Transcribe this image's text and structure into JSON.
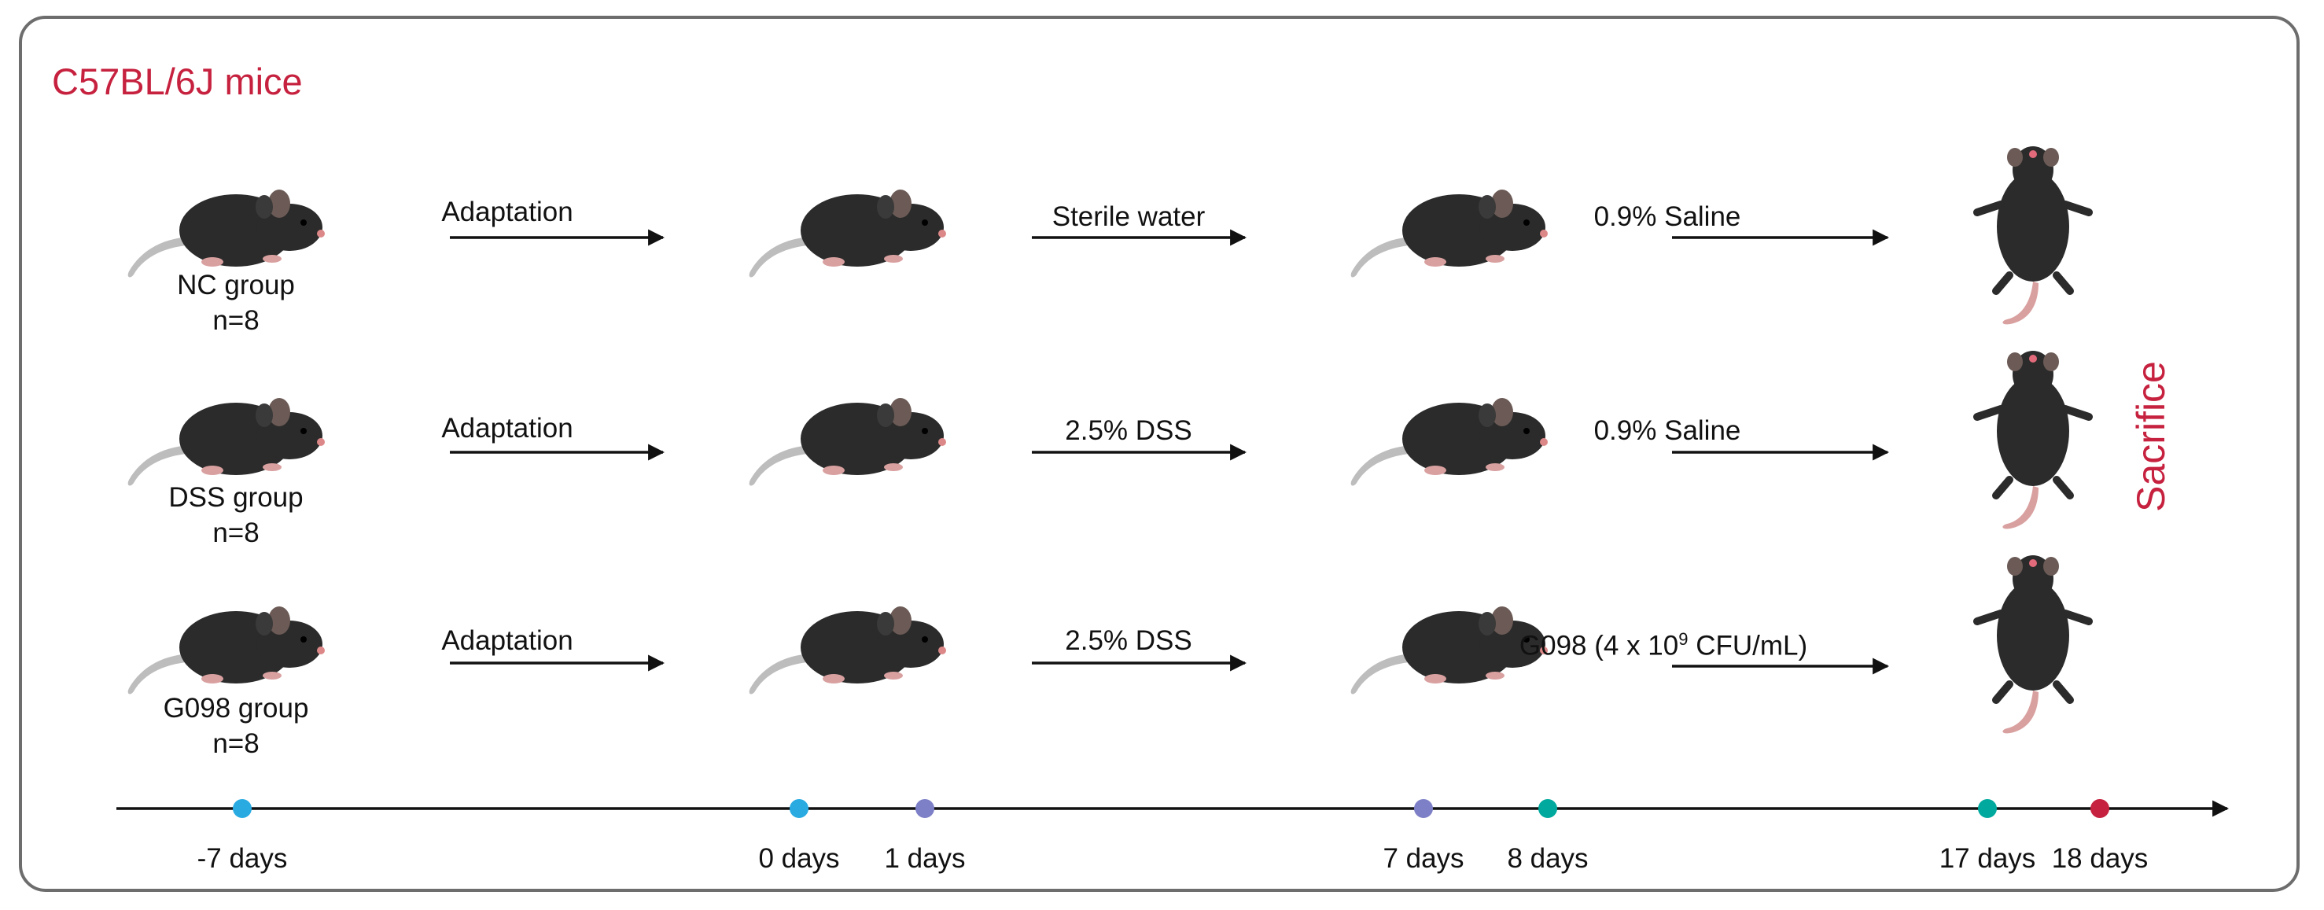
{
  "strain": "C57BL/6J mice",
  "groups": [
    {
      "name": "NC group",
      "n": "n=8"
    },
    {
      "name": "DSS group",
      "n": "n=8"
    },
    {
      "name": "G098 group",
      "n": "n=8"
    }
  ],
  "steps": {
    "adaptation": "Adaptation",
    "sterile_water": "Sterile water",
    "dss_1": "2.5% DSS",
    "dss_2": "2.5% DSS",
    "saline_1": "0.9% Saline",
    "saline_2": "0.9% Saline",
    "g098_prefix": "G098 (4 x 10",
    "g098_exp": "9",
    "g098_suffix": " CFU/mL)"
  },
  "sacrifice": "Sacrifice",
  "timeline": {
    "ticks": [
      {
        "day": -7,
        "label": "-7 days",
        "color": "#29abe2"
      },
      {
        "day": 0,
        "label": "0 days",
        "color": "#29abe2"
      },
      {
        "day": 1,
        "label": "1 days",
        "color": "#7d7fc7"
      },
      {
        "day": 7,
        "label": "7 days",
        "color": "#7d7fc7"
      },
      {
        "day": 8,
        "label": "8 days",
        "color": "#00a99d"
      },
      {
        "day": 17,
        "label": "17 days",
        "color": "#00a99d"
      },
      {
        "day": 18,
        "label": "18 days",
        "color": "#c6213e"
      }
    ]
  },
  "colors": {
    "accent": "#c6213e",
    "frame": "#6d6d6d",
    "mouse": "#2b2b2b"
  },
  "icons": {
    "mouse": "mouse-side-icon",
    "sacrificed": "mouse-supine-icon"
  }
}
